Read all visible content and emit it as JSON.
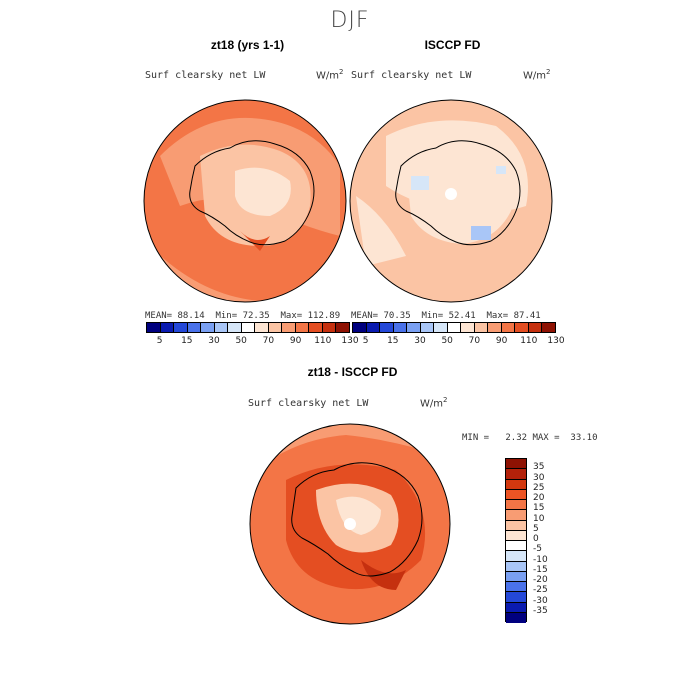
{
  "title": "DJF",
  "panels": {
    "left": {
      "title": "zt18 (yrs 1-1)",
      "variable": "Surf clearsky net LW",
      "unit_base": "W/m",
      "unit_exp": "2",
      "mean_label": "MEAN=",
      "mean": "88.14",
      "min_label": "Min=",
      "min": "72.35",
      "max_label": "Max=",
      "max": "112.89"
    },
    "right": {
      "title": "ISCCP FD",
      "variable": "Surf clearsky net LW",
      "unit_base": "W/m",
      "unit_exp": "2",
      "mean_label": "MEAN=",
      "mean": "70.35",
      "min_label": "Min=",
      "min": "52.41",
      "max_label": "Max=",
      "max": "87.41"
    },
    "diff": {
      "title": "zt18 - ISCCP FD",
      "variable": "Surf clearsky net LW",
      "unit_base": "W/m",
      "unit_exp": "2",
      "min_label": "MIN =",
      "min": "2.32",
      "max_label": "MAX =",
      "max": "33.10"
    }
  },
  "abs_colorbar": {
    "colors": [
      "#00007f",
      "#0a1bb0",
      "#2448d8",
      "#4a72ea",
      "#7aa0f2",
      "#a9c6f7",
      "#d6e6f8",
      "#ffffff",
      "#fde5d3",
      "#fbc4a4",
      "#f89c73",
      "#f37546",
      "#e44e22",
      "#c5300f",
      "#8e1203"
    ],
    "ticks": [
      "5",
      "15",
      "30",
      "50",
      "70",
      "90",
      "110",
      "130"
    ]
  },
  "diff_colorbar": {
    "colors_top_to_bottom": [
      "#8e1203",
      "#b3210a",
      "#d2380f",
      "#ec5424",
      "#f37546",
      "#f89c73",
      "#fbc4a4",
      "#fde5d3",
      "#ffffff",
      "#d6e6f8",
      "#a9c6f7",
      "#7aa0f2",
      "#4a72ea",
      "#2448d8",
      "#0a1bb0",
      "#00007f"
    ],
    "ticks": [
      "35",
      "30",
      "25",
      "20",
      "15",
      "10",
      "5",
      "0",
      "-5",
      "-10",
      "-15",
      "-20",
      "-25",
      "-30",
      "-35"
    ]
  }
}
